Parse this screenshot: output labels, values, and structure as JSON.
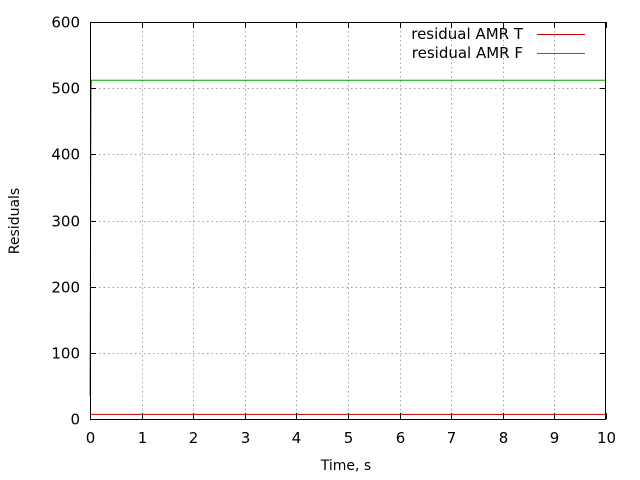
{
  "chart_data": {
    "type": "line",
    "xlabel": "Time, s",
    "ylabel": "Residuals",
    "xlim": [
      0,
      10
    ],
    "ylim": [
      0,
      600
    ],
    "xticks": [
      0,
      1,
      2,
      3,
      4,
      5,
      6,
      7,
      8,
      9,
      10
    ],
    "yticks": [
      0,
      100,
      200,
      300,
      400,
      500,
      600
    ],
    "grid": true,
    "legend_position": "top-right",
    "series": [
      {
        "name": "residual AMR T",
        "color": "#cc0000",
        "x": [
          0,
          10
        ],
        "y": [
          7,
          7
        ]
      },
      {
        "name": "residual AMR F",
        "color": "#00a000",
        "x": [
          0,
          0.02,
          0.03,
          10
        ],
        "y": [
          35,
          500,
          512,
          512
        ]
      }
    ]
  }
}
